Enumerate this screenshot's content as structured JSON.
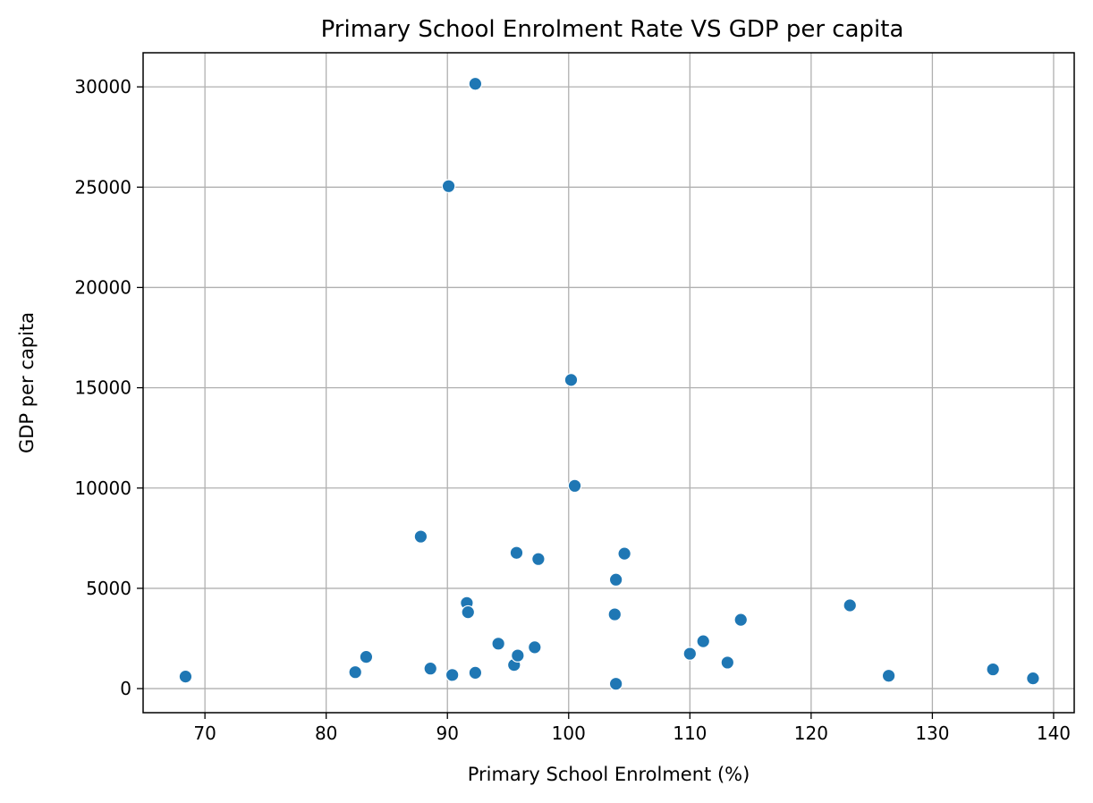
{
  "chart_data": {
    "type": "scatter",
    "title": "Primary School Enrolment Rate VS GDP per capita",
    "xlabel": "Primary School Enrolment (%)",
    "ylabel": "GDP per capita",
    "xlim": [
      64.9,
      141.7
    ],
    "ylim": [
      -1200,
      31700
    ],
    "xticks": [
      70,
      80,
      90,
      100,
      110,
      120,
      130,
      140
    ],
    "yticks": [
      0,
      5000,
      10000,
      15000,
      20000,
      25000,
      30000
    ],
    "grid": true,
    "point_color": "#1f77b4",
    "points": [
      {
        "x": 68.4,
        "y": 600
      },
      {
        "x": 82.4,
        "y": 820
      },
      {
        "x": 83.3,
        "y": 1580
      },
      {
        "x": 87.8,
        "y": 7580
      },
      {
        "x": 88.6,
        "y": 1000
      },
      {
        "x": 90.1,
        "y": 25050
      },
      {
        "x": 90.4,
        "y": 680
      },
      {
        "x": 91.6,
        "y": 4270
      },
      {
        "x": 91.7,
        "y": 3810
      },
      {
        "x": 92.3,
        "y": 30150
      },
      {
        "x": 92.3,
        "y": 790
      },
      {
        "x": 94.2,
        "y": 2240
      },
      {
        "x": 95.5,
        "y": 1180
      },
      {
        "x": 95.7,
        "y": 6770
      },
      {
        "x": 95.8,
        "y": 1650
      },
      {
        "x": 97.2,
        "y": 2060
      },
      {
        "x": 97.5,
        "y": 6460
      },
      {
        "x": 100.2,
        "y": 15390
      },
      {
        "x": 100.5,
        "y": 10110
      },
      {
        "x": 103.8,
        "y": 3700
      },
      {
        "x": 103.9,
        "y": 5430
      },
      {
        "x": 103.9,
        "y": 240
      },
      {
        "x": 104.6,
        "y": 6730
      },
      {
        "x": 110.0,
        "y": 1740
      },
      {
        "x": 111.1,
        "y": 2360
      },
      {
        "x": 113.1,
        "y": 1300
      },
      {
        "x": 114.2,
        "y": 3430
      },
      {
        "x": 123.2,
        "y": 4150
      },
      {
        "x": 126.4,
        "y": 640
      },
      {
        "x": 135.0,
        "y": 960
      },
      {
        "x": 138.3,
        "y": 510
      }
    ]
  }
}
